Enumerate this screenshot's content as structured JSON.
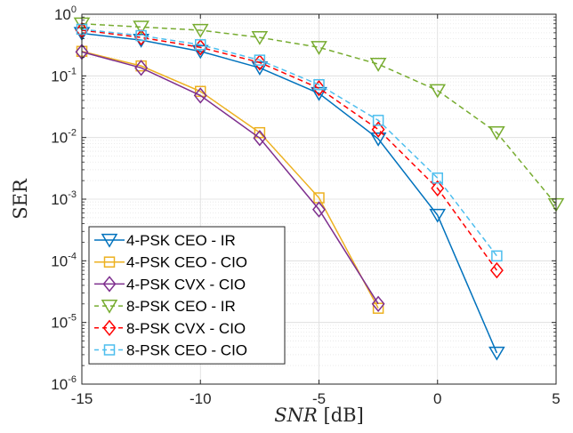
{
  "chart_data": {
    "type": "line",
    "ylabel": "SER",
    "xlabel": {
      "italic": "SNR",
      "unit": "[dB]"
    },
    "xlim": [
      -15,
      5
    ],
    "ylim_log10": [
      -6,
      0
    ],
    "y_scale": "log",
    "grid": true,
    "minor_grid": true,
    "legend_position": "bottom-left",
    "x_ticks": [
      "-15",
      "-10",
      "-5",
      "0",
      "5"
    ],
    "y_ticks": [
      {
        "base": "10",
        "exp": "-6"
      },
      {
        "base": "10",
        "exp": "-5"
      },
      {
        "base": "10",
        "exp": "-4"
      },
      {
        "base": "10",
        "exp": "-3"
      },
      {
        "base": "10",
        "exp": "-2"
      },
      {
        "base": "10",
        "exp": "-1"
      },
      {
        "base": "10",
        "exp": "0"
      }
    ],
    "series": [
      {
        "name": "4-PSK CEO - IR",
        "color": "#0072BD",
        "marker": "triangle-down",
        "dashed": false,
        "x": [
          -15,
          -12.5,
          -10,
          -7.5,
          -5,
          -2.5,
          0,
          2.5
        ],
        "y": [
          0.49,
          0.38,
          0.25,
          0.135,
          0.052,
          0.0095,
          0.00055,
          3.2e-06
        ]
      },
      {
        "name": "4-PSK CEO - CIO",
        "color": "#EDB120",
        "marker": "square",
        "dashed": false,
        "x": [
          -15,
          -12.5,
          -10,
          -7.5,
          -5,
          -2.5
        ],
        "y": [
          0.25,
          0.145,
          0.056,
          0.012,
          0.00105,
          1.7e-05
        ]
      },
      {
        "name": "4-PSK CVX - CIO",
        "color": "#7E2F8E",
        "marker": "diamond",
        "dashed": false,
        "x": [
          -15,
          -12.5,
          -10,
          -7.5,
          -5,
          -2.5
        ],
        "y": [
          0.245,
          0.135,
          0.048,
          0.0098,
          0.00068,
          2e-05
        ]
      },
      {
        "name": "8-PSK CEO - IR",
        "color": "#77AC30",
        "marker": "triangle-down",
        "dashed": true,
        "x": [
          -15,
          -12.5,
          -10,
          -7.5,
          -5,
          -2.5,
          0,
          2.5,
          5
        ],
        "y": [
          0.7,
          0.62,
          0.55,
          0.42,
          0.29,
          0.155,
          0.058,
          0.012,
          0.00082
        ]
      },
      {
        "name": "8-PSK CVX - CIO",
        "color": "#FF0000",
        "marker": "diamond",
        "dashed": true,
        "x": [
          -15,
          -12.5,
          -10,
          -7.5,
          -5,
          -2.5,
          0,
          2.5
        ],
        "y": [
          0.55,
          0.42,
          0.29,
          0.165,
          0.063,
          0.0135,
          0.0015,
          7e-05
        ]
      },
      {
        "name": "8-PSK CEO - CIO",
        "color": "#4DBEEE",
        "marker": "square",
        "dashed": true,
        "x": [
          -15,
          -12.5,
          -10,
          -7.5,
          -5,
          -2.5,
          0,
          2.5
        ],
        "y": [
          0.57,
          0.45,
          0.32,
          0.18,
          0.072,
          0.019,
          0.0022,
          0.00012
        ]
      }
    ]
  }
}
